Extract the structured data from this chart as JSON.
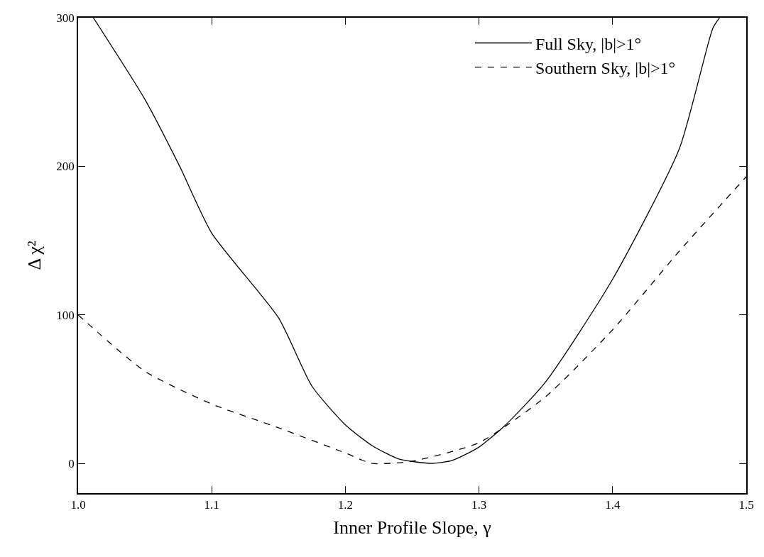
{
  "chart_data": {
    "type": "line",
    "xlabel": "Inner Profile Slope, γ",
    "ylabel": "Δ χ²",
    "xlim": [
      1.0,
      1.5
    ],
    "ylim": [
      -20,
      300
    ],
    "xticks": [
      {
        "value": 1.0,
        "label": "1.0"
      },
      1.1,
      1.2,
      1.3,
      1.4,
      {
        "value": 1.5,
        "label": "1.5"
      }
    ],
    "yticks": [
      0,
      100,
      200,
      300
    ],
    "grid": false,
    "legend": "top right",
    "marker": "none",
    "series": [
      {
        "name": "Full Sky, |b|>1°",
        "color": "#000000",
        "line_style": "solid",
        "x": [
          1.0114,
          1.05,
          1.076,
          1.1,
          1.15,
          1.175,
          1.2,
          1.22,
          1.24,
          1.265,
          1.28,
          1.3,
          1.32,
          1.35,
          1.4,
          1.45,
          1.475,
          1.48
        ],
        "values": [
          300,
          245,
          200,
          155,
          98,
          52,
          26,
          12,
          3,
          0,
          2,
          11,
          26,
          55,
          124,
          212,
          293,
          300
        ]
      },
      {
        "name": "Southern Sky, |b|>1°",
        "color": "#000000",
        "line_style": "dashed",
        "x": [
          1.0,
          1.05,
          1.1,
          1.15,
          1.2,
          1.22,
          1.25,
          1.3,
          1.35,
          1.4,
          1.45,
          1.5
        ],
        "values": [
          100,
          62,
          40,
          24,
          7,
          0,
          1.5,
          14,
          45,
          90,
          143,
          193
        ]
      }
    ]
  }
}
